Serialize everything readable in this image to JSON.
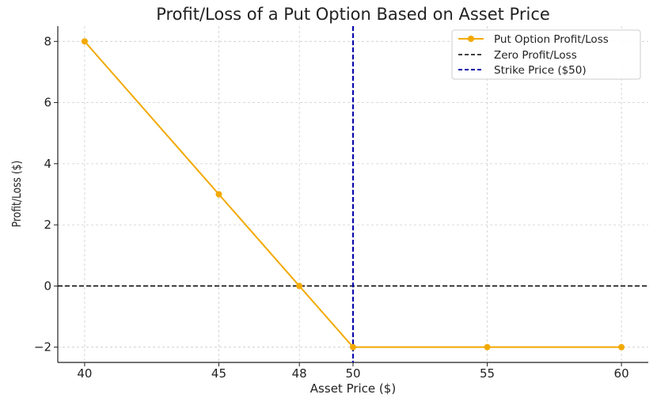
{
  "chart_data": {
    "type": "line",
    "title": "Profit/Loss of a Put Option Based on Asset Price",
    "xlabel": "Asset Price ($)",
    "ylabel": "Profit/Loss ($)",
    "x_ticks": [
      40,
      45,
      48,
      50,
      55,
      60
    ],
    "y_ticks": [
      -2,
      0,
      2,
      4,
      6,
      8
    ],
    "y_tick_labels": [
      "−2",
      "0",
      "2",
      "4",
      "6",
      "8"
    ],
    "xlim": [
      39,
      61
    ],
    "ylim": [
      -2.5,
      8.5
    ],
    "grid": true,
    "legend_position": "top-right",
    "series": [
      {
        "name": "Put Option Profit/Loss",
        "x": [
          40,
          45,
          48,
          50,
          55,
          60
        ],
        "y": [
          8,
          3,
          0,
          -2,
          -2,
          -2
        ],
        "color": "#f2a900",
        "marker": "circle"
      }
    ],
    "reference_lines": [
      {
        "name": "Zero Profit/Loss",
        "orientation": "horizontal",
        "value": 0,
        "color": "#000000",
        "style": "dashed"
      },
      {
        "name": "Strike Price ($50)",
        "orientation": "vertical",
        "value": 50,
        "color": "#0000aa",
        "style": "dashed"
      }
    ]
  }
}
